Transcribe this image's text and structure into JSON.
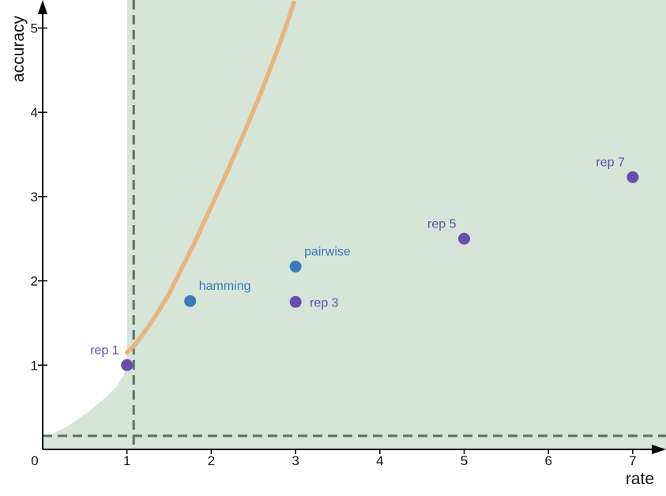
{
  "chart_data": {
    "type": "scatter",
    "xlabel": "rate",
    "ylabel": "accuracy",
    "xlim": [
      0,
      7.4
    ],
    "ylim": [
      0,
      5.3
    ],
    "x_ticks": [
      0,
      1,
      2,
      3,
      4,
      5,
      6,
      7
    ],
    "y_ticks": [
      1,
      2,
      3,
      4,
      5
    ],
    "grid": false,
    "threshold_lines": {
      "x": 1.08,
      "y": 0.16
    },
    "colors": {
      "region_fill": "#d5e6d8",
      "curve": "#e8b57e",
      "threshold": "#5f6e66",
      "repetition": "#6a4cae",
      "other": "#3a7ab8"
    },
    "points": [
      {
        "label": "rep 1",
        "x": 1.0,
        "y": 1.0,
        "group": "repetition",
        "label_pos": "left"
      },
      {
        "label": "hamming",
        "x": 1.75,
        "y": 1.76,
        "group": "other",
        "label_pos": "right-up"
      },
      {
        "label": "rep 3",
        "x": 3.0,
        "y": 1.75,
        "group": "repetition",
        "label_pos": "right"
      },
      {
        "label": "pairwise",
        "x": 3.0,
        "y": 2.17,
        "group": "other",
        "label_pos": "right-up"
      },
      {
        "label": "rep 5",
        "x": 5.0,
        "y": 2.5,
        "group": "repetition",
        "label_pos": "left-up"
      },
      {
        "label": "rep 7",
        "x": 7.0,
        "y": 3.23,
        "group": "repetition",
        "label_pos": "left-up"
      }
    ],
    "curve": {
      "x": [
        1.0,
        1.1,
        1.2,
        1.3,
        1.4,
        1.5,
        1.6,
        1.7,
        1.8,
        1.9,
        2.0,
        2.1,
        2.2,
        2.3,
        2.4,
        2.5,
        2.6,
        2.7,
        2.8,
        2.9,
        2.98
      ],
      "y": [
        1.15,
        1.25,
        1.38,
        1.52,
        1.68,
        1.85,
        2.05,
        2.25,
        2.45,
        2.67,
        2.88,
        3.1,
        3.32,
        3.55,
        3.78,
        4.02,
        4.26,
        4.52,
        4.78,
        5.06,
        5.3
      ]
    },
    "region_boundary": {
      "x": [
        0.0,
        0.3,
        0.55,
        0.75,
        0.88,
        0.96,
        1.0
      ],
      "y": [
        0.12,
        0.28,
        0.45,
        0.62,
        0.75,
        0.88,
        1.0
      ]
    }
  }
}
